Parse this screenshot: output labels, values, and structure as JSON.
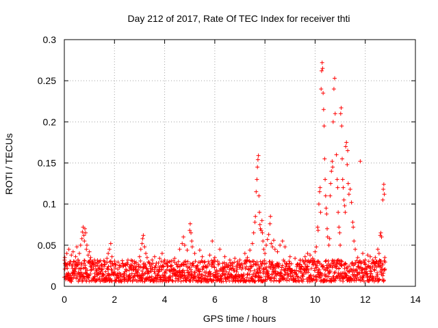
{
  "chart_data": {
    "type": "scatter",
    "title": "Day 212 of 2017, Rate Of TEC Index for receiver thti",
    "xlabel": "GPS time / hours",
    "ylabel": "ROTI / TECUs",
    "xlim": [
      0,
      14
    ],
    "ylim": [
      0,
      0.3
    ],
    "grid": true,
    "marker": "+",
    "color": "#ff0000",
    "x_ticks": [
      0,
      2,
      4,
      6,
      8,
      10,
      12,
      14
    ],
    "x_tick_labels": [
      "0",
      "2",
      "4",
      "6",
      "8",
      "10",
      "12",
      "14"
    ],
    "y_ticks": [
      0,
      0.05,
      0.1,
      0.15,
      0.2,
      0.25,
      0.3
    ],
    "y_tick_labels": [
      "0",
      "0.05",
      "0.1",
      "0.15",
      "0.2",
      "0.25",
      "0.3"
    ],
    "series": [
      {
        "name": "ROTI",
        "points": [
          [
            0.02,
            0.035
          ],
          [
            0.05,
            0.028
          ],
          [
            0.1,
            0.04
          ],
          [
            0.12,
            0.022
          ],
          [
            0.18,
            0.045
          ],
          [
            0.22,
            0.03
          ],
          [
            0.28,
            0.038
          ],
          [
            0.3,
            0.025
          ],
          [
            0.35,
            0.042
          ],
          [
            0.4,
            0.03
          ],
          [
            0.45,
            0.036
          ],
          [
            0.5,
            0.048
          ],
          [
            0.55,
            0.032
          ],
          [
            0.6,
            0.04
          ],
          [
            0.65,
            0.05
          ],
          [
            0.7,
            0.058
          ],
          [
            0.72,
            0.066
          ],
          [
            0.75,
            0.072
          ],
          [
            0.78,
            0.062
          ],
          [
            0.8,
            0.055
          ],
          [
            0.82,
            0.07
          ],
          [
            0.85,
            0.065
          ],
          [
            0.88,
            0.045
          ],
          [
            0.9,
            0.05
          ],
          [
            0.95,
            0.038
          ],
          [
            1.0,
            0.042
          ],
          [
            1.05,
            0.035
          ],
          [
            1.1,
            0.03
          ],
          [
            1.2,
            0.032
          ],
          [
            1.3,
            0.028
          ],
          [
            1.4,
            0.03
          ],
          [
            1.5,
            0.026
          ],
          [
            1.6,
            0.03
          ],
          [
            1.7,
            0.034
          ],
          [
            1.75,
            0.04
          ],
          [
            1.8,
            0.045
          ],
          [
            1.85,
            0.052
          ],
          [
            1.9,
            0.036
          ],
          [
            2.0,
            0.028
          ],
          [
            2.2,
            0.025
          ],
          [
            2.4,
            0.026
          ],
          [
            2.6,
            0.024
          ],
          [
            2.8,
            0.028
          ],
          [
            3.0,
            0.036
          ],
          [
            3.05,
            0.045
          ],
          [
            3.1,
            0.052
          ],
          [
            3.12,
            0.058
          ],
          [
            3.15,
            0.062
          ],
          [
            3.2,
            0.048
          ],
          [
            3.25,
            0.04
          ],
          [
            3.3,
            0.035
          ],
          [
            3.5,
            0.032
          ],
          [
            3.6,
            0.036
          ],
          [
            3.8,
            0.034
          ],
          [
            3.9,
            0.04
          ],
          [
            4.0,
            0.032
          ],
          [
            4.2,
            0.03
          ],
          [
            4.4,
            0.034
          ],
          [
            4.6,
            0.045
          ],
          [
            4.7,
            0.052
          ],
          [
            4.75,
            0.06
          ],
          [
            4.8,
            0.05
          ],
          [
            4.9,
            0.044
          ],
          [
            5.0,
            0.068
          ],
          [
            5.02,
            0.076
          ],
          [
            5.05,
            0.065
          ],
          [
            5.08,
            0.055
          ],
          [
            5.1,
            0.048
          ],
          [
            5.2,
            0.04
          ],
          [
            5.4,
            0.044
          ],
          [
            5.5,
            0.036
          ],
          [
            5.6,
            0.03
          ],
          [
            5.8,
            0.038
          ],
          [
            5.9,
            0.055
          ],
          [
            6.0,
            0.035
          ],
          [
            6.2,
            0.045
          ],
          [
            6.4,
            0.036
          ],
          [
            6.6,
            0.032
          ],
          [
            6.8,
            0.034
          ],
          [
            6.9,
            0.03
          ],
          [
            7.0,
            0.032
          ],
          [
            7.2,
            0.04
          ],
          [
            7.3,
            0.035
          ],
          [
            7.4,
            0.044
          ],
          [
            7.5,
            0.052
          ],
          [
            7.55,
            0.065
          ],
          [
            7.6,
            0.078
          ],
          [
            7.62,
            0.085
          ],
          [
            7.65,
            0.115
          ],
          [
            7.68,
            0.13
          ],
          [
            7.7,
            0.145
          ],
          [
            7.72,
            0.154
          ],
          [
            7.74,
            0.159
          ],
          [
            7.76,
            0.11
          ],
          [
            7.78,
            0.09
          ],
          [
            7.8,
            0.075
          ],
          [
            7.82,
            0.07
          ],
          [
            7.85,
            0.068
          ],
          [
            7.88,
            0.08
          ],
          [
            7.9,
            0.065
          ],
          [
            7.92,
            0.055
          ],
          [
            7.95,
            0.045
          ],
          [
            8.0,
            0.04
          ],
          [
            8.05,
            0.05
          ],
          [
            8.1,
            0.057
          ],
          [
            8.15,
            0.063
          ],
          [
            8.2,
            0.076
          ],
          [
            8.22,
            0.085
          ],
          [
            8.25,
            0.052
          ],
          [
            8.3,
            0.048
          ],
          [
            8.35,
            0.056
          ],
          [
            8.4,
            0.045
          ],
          [
            8.5,
            0.042
          ],
          [
            8.6,
            0.05
          ],
          [
            8.7,
            0.055
          ],
          [
            8.8,
            0.048
          ],
          [
            9.0,
            0.036
          ],
          [
            9.2,
            0.034
          ],
          [
            9.4,
            0.032
          ],
          [
            9.6,
            0.036
          ],
          [
            9.7,
            0.04
          ],
          [
            9.8,
            0.038
          ],
          [
            9.9,
            0.034
          ],
          [
            10.0,
            0.042
          ],
          [
            10.05,
            0.048
          ],
          [
            10.1,
            0.072
          ],
          [
            10.12,
            0.068
          ],
          [
            10.15,
            0.1
          ],
          [
            10.18,
            0.115
          ],
          [
            10.2,
            0.12
          ],
          [
            10.22,
            0.09
          ],
          [
            10.24,
            0.24
          ],
          [
            10.26,
            0.262
          ],
          [
            10.28,
            0.272
          ],
          [
            10.3,
            0.265
          ],
          [
            10.32,
            0.235
          ],
          [
            10.34,
            0.215
          ],
          [
            10.36,
            0.195
          ],
          [
            10.38,
            0.155
          ],
          [
            10.4,
            0.13
          ],
          [
            10.42,
            0.11
          ],
          [
            10.44,
            0.095
          ],
          [
            10.46,
            0.088
          ],
          [
            10.48,
            0.07
          ],
          [
            10.5,
            0.06
          ],
          [
            10.55,
            0.05
          ],
          [
            10.58,
            0.058
          ],
          [
            10.6,
            0.11
          ],
          [
            10.62,
            0.125
          ],
          [
            10.65,
            0.14
          ],
          [
            10.68,
            0.152
          ],
          [
            10.7,
            0.145
          ],
          [
            10.72,
            0.2
          ],
          [
            10.75,
            0.24
          ],
          [
            10.78,
            0.253
          ],
          [
            10.8,
            0.21
          ],
          [
            10.85,
            0.16
          ],
          [
            10.88,
            0.13
          ],
          [
            10.9,
            0.12
          ],
          [
            10.92,
            0.09
          ],
          [
            10.95,
            0.072
          ],
          [
            10.98,
            0.065
          ],
          [
            11.0,
            0.05
          ],
          [
            11.02,
            0.21
          ],
          [
            11.04,
            0.217
          ],
          [
            11.06,
            0.195
          ],
          [
            11.08,
            0.155
          ],
          [
            11.1,
            0.13
          ],
          [
            11.12,
            0.12
          ],
          [
            11.15,
            0.105
          ],
          [
            11.18,
            0.098
          ],
          [
            11.2,
            0.09
          ],
          [
            11.22,
            0.17
          ],
          [
            11.25,
            0.175
          ],
          [
            11.28,
            0.148
          ],
          [
            11.3,
            0.165
          ],
          [
            11.32,
            0.125
          ],
          [
            11.35,
            0.112
          ],
          [
            11.4,
            0.118
          ],
          [
            11.45,
            0.102
          ],
          [
            11.5,
            0.078
          ],
          [
            11.52,
            0.072
          ],
          [
            11.55,
            0.055
          ],
          [
            11.6,
            0.045
          ],
          [
            11.7,
            0.035
          ],
          [
            11.8,
            0.152
          ],
          [
            11.9,
            0.04
          ],
          [
            12.0,
            0.032
          ],
          [
            12.1,
            0.038
          ],
          [
            12.2,
            0.036
          ],
          [
            12.3,
            0.032
          ],
          [
            12.4,
            0.035
          ],
          [
            12.5,
            0.045
          ],
          [
            12.55,
            0.04
          ],
          [
            12.6,
            0.062
          ],
          [
            12.62,
            0.065
          ],
          [
            12.65,
            0.06
          ],
          [
            12.7,
            0.105
          ],
          [
            12.72,
            0.118
          ],
          [
            12.74,
            0.124
          ],
          [
            12.76,
            0.112
          ],
          [
            12.78,
            0.035
          ]
        ],
        "baseline": {
          "from": 0.0,
          "to": 12.8,
          "min": 0.006,
          "max": 0.032
        }
      }
    ]
  }
}
